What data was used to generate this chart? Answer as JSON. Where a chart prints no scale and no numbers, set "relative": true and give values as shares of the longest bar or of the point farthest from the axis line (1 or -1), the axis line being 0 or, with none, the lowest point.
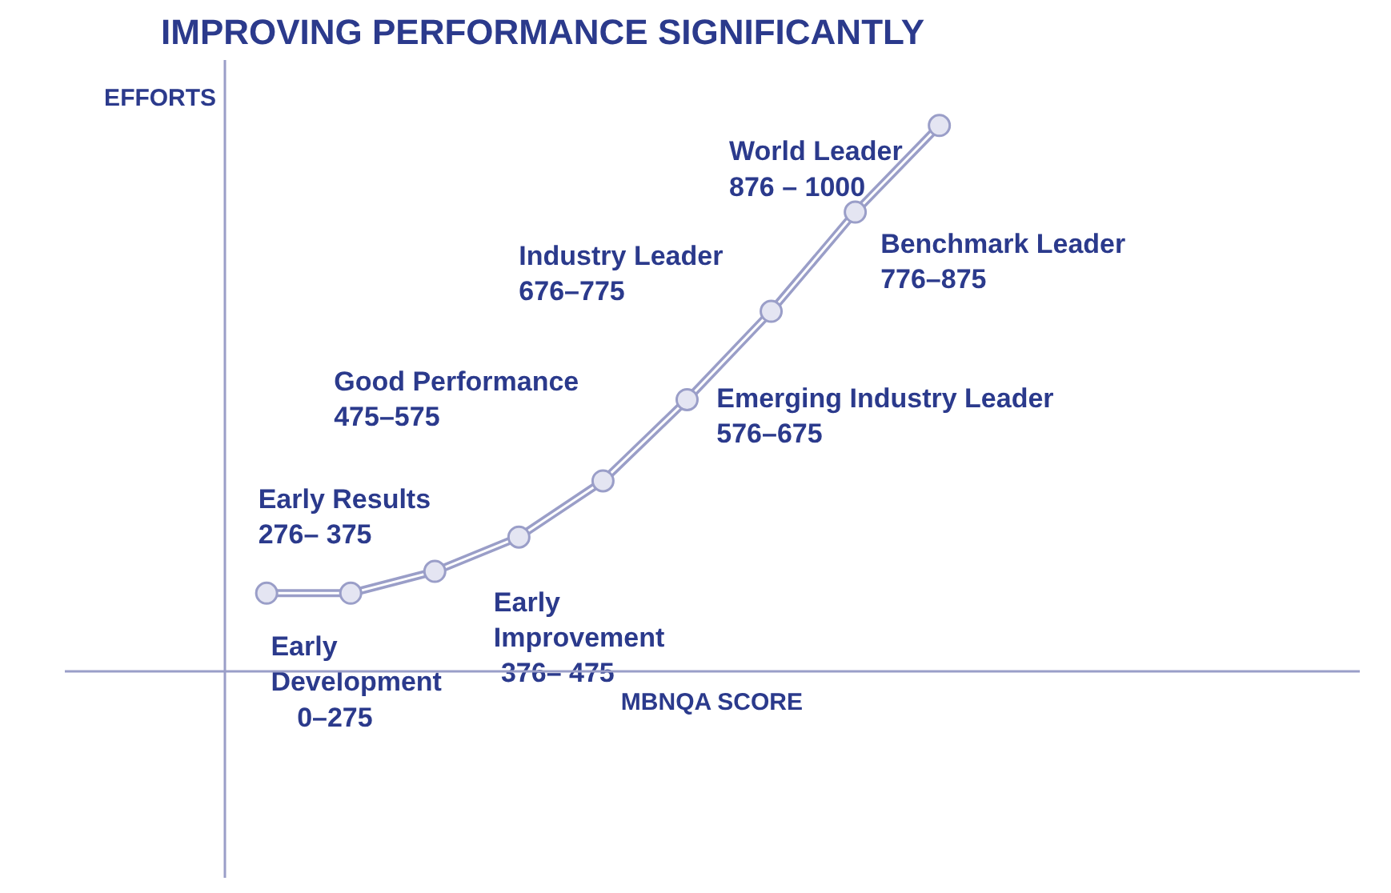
{
  "chart_data": {
    "type": "line",
    "title": "IMPROVING PERFORMANCE SIGNIFICANTLY",
    "xlabel": "MBNQA SCORE",
    "ylabel": "EFFORTS",
    "relative": true,
    "marker": "circle",
    "color": "#9a9ec8",
    "categories": [
      null,
      null,
      null,
      null,
      null,
      null,
      null,
      null,
      null
    ],
    "values": [
      0.142,
      0.142,
      0.182,
      0.245,
      0.348,
      0.497,
      0.659,
      0.841,
      1
    ],
    "annotations": [
      "Early\nDevelopment\n0–275",
      "Early Results\n276– 375",
      "Early\nImprovement\n376– 475",
      "Good  Performance\n475–575",
      "Emerging Industry  Leader\n576–675",
      "Industry  Leader\n676–775",
      "Benchmark Leader\n776–875",
      "World Leader\n876  –  1000"
    ]
  }
}
